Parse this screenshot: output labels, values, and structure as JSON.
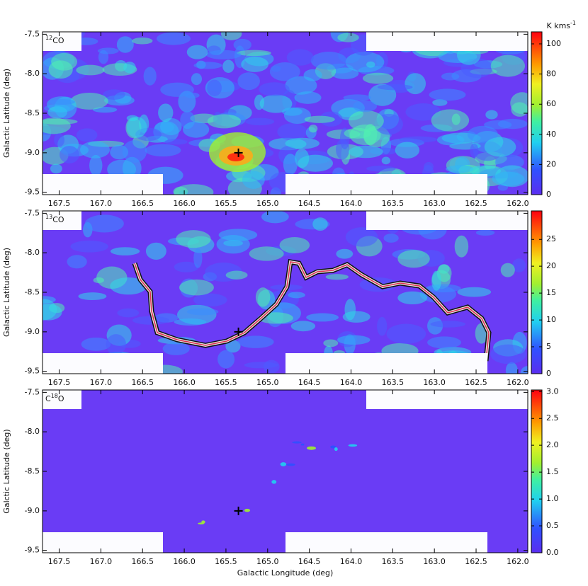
{
  "chart_data": [
    {
      "type": "heatmap",
      "panel_label": [
        {
          "text": "12",
          "sup": true
        },
        {
          "text": "CO"
        }
      ],
      "ylabel": "Galactic Latitude (deg)",
      "xlim": [
        167.7,
        161.88
      ],
      "ylim": [
        -9.53,
        -7.47
      ],
      "xticks": [
        {
          "value": 167.5,
          "label": "167.5"
        },
        {
          "value": 167,
          "label": "167.0"
        },
        {
          "value": 166.5,
          "label": "166.5"
        },
        {
          "value": 166,
          "label": "166.0"
        },
        {
          "value": 165.5,
          "label": "165.5"
        },
        {
          "value": 165,
          "label": "165.0"
        },
        {
          "value": 164.5,
          "label": "164.5"
        },
        {
          "value": 164,
          "label": "164.0"
        },
        {
          "value": 163.5,
          "label": "163.5"
        },
        {
          "value": 163,
          "label": "163.0"
        },
        {
          "value": 162.5,
          "label": "162.5"
        },
        {
          "value": 162,
          "label": "162.0"
        }
      ],
      "yticks": [
        -7.5,
        {
          "value": -8,
          "label": "-8.0"
        },
        -8.5,
        {
          "value": -9,
          "label": "-9.0"
        },
        -9.5
      ],
      "colorbar": {
        "lim": [
          0,
          108
        ],
        "ticks": [
          0,
          20,
          40,
          60,
          80,
          100
        ],
        "unit": [
          {
            "text": "K kms"
          },
          {
            "text": "-1",
            "sup": true
          }
        ]
      },
      "marker": {
        "x": 165.35,
        "y": -9.0
      }
    },
    {
      "type": "heatmap",
      "panel_label": [
        {
          "text": "13",
          "sup": true
        },
        {
          "text": "CO"
        }
      ],
      "ylabel": "Galactic Latitude (deg)",
      "xlim": [
        167.7,
        161.88
      ],
      "ylim": [
        -9.53,
        -7.47
      ],
      "xticks": [
        {
          "value": 167.5,
          "label": "167.5"
        },
        {
          "value": 167,
          "label": "167.0"
        },
        {
          "value": 166.5,
          "label": "166.5"
        },
        {
          "value": 166,
          "label": "166.0"
        },
        {
          "value": 165.5,
          "label": "165.5"
        },
        {
          "value": 165,
          "label": "165.0"
        },
        {
          "value": 164.5,
          "label": "164.5"
        },
        {
          "value": 164,
          "label": "164.0"
        },
        {
          "value": 163.5,
          "label": "163.5"
        },
        {
          "value": 163,
          "label": "163.0"
        },
        {
          "value": 162.5,
          "label": "162.5"
        },
        {
          "value": 162,
          "label": "162.0"
        }
      ],
      "yticks": [
        -7.5,
        {
          "value": -8,
          "label": "-8.0"
        },
        -8.5,
        {
          "value": -9,
          "label": "-9.0"
        },
        -9.5
      ],
      "colorbar": {
        "lim": [
          0,
          30.3
        ],
        "ticks": [
          0,
          5,
          10,
          15,
          20,
          25
        ]
      },
      "marker": {
        "x": 165.35,
        "y": -9.0
      }
    },
    {
      "type": "heatmap",
      "panel_label": [
        {
          "text": "C"
        },
        {
          "text": "18",
          "sup": true
        },
        {
          "text": "O"
        }
      ],
      "ylabel": "Galctic Latitude (deg)",
      "xlabel": "Galactic Longitude (deg)",
      "xlim": [
        167.7,
        161.88
      ],
      "ylim": [
        -9.53,
        -7.47
      ],
      "xticks": [
        {
          "value": 167.5,
          "label": "167.5"
        },
        {
          "value": 167,
          "label": "167.0"
        },
        {
          "value": 166.5,
          "label": "166.5"
        },
        {
          "value": 166,
          "label": "166.0"
        },
        {
          "value": 165.5,
          "label": "165.5"
        },
        {
          "value": 165,
          "label": "165.0"
        },
        {
          "value": 164.5,
          "label": "164.5"
        },
        {
          "value": 164,
          "label": "164.0"
        },
        {
          "value": 163.5,
          "label": "163.5"
        },
        {
          "value": 163,
          "label": "163.0"
        },
        {
          "value": 162.5,
          "label": "162.5"
        },
        {
          "value": 162,
          "label": "162.0"
        }
      ],
      "yticks": [
        -7.5,
        {
          "value": -8,
          "label": "-8.0"
        },
        -8.5,
        {
          "value": -9,
          "label": "-9.0"
        },
        -9.5
      ],
      "colorbar": {
        "lim": [
          0,
          3.03
        ],
        "ticks": [
          {
            "value": 0,
            "label": "0.0"
          },
          0.5,
          {
            "value": 1,
            "label": "1.0"
          },
          1.5,
          {
            "value": 2,
            "label": "2.0"
          },
          2.5,
          {
            "value": 3,
            "label": "3.0"
          }
        ]
      },
      "marker": {
        "x": 165.35,
        "y": -9.0
      }
    }
  ]
}
